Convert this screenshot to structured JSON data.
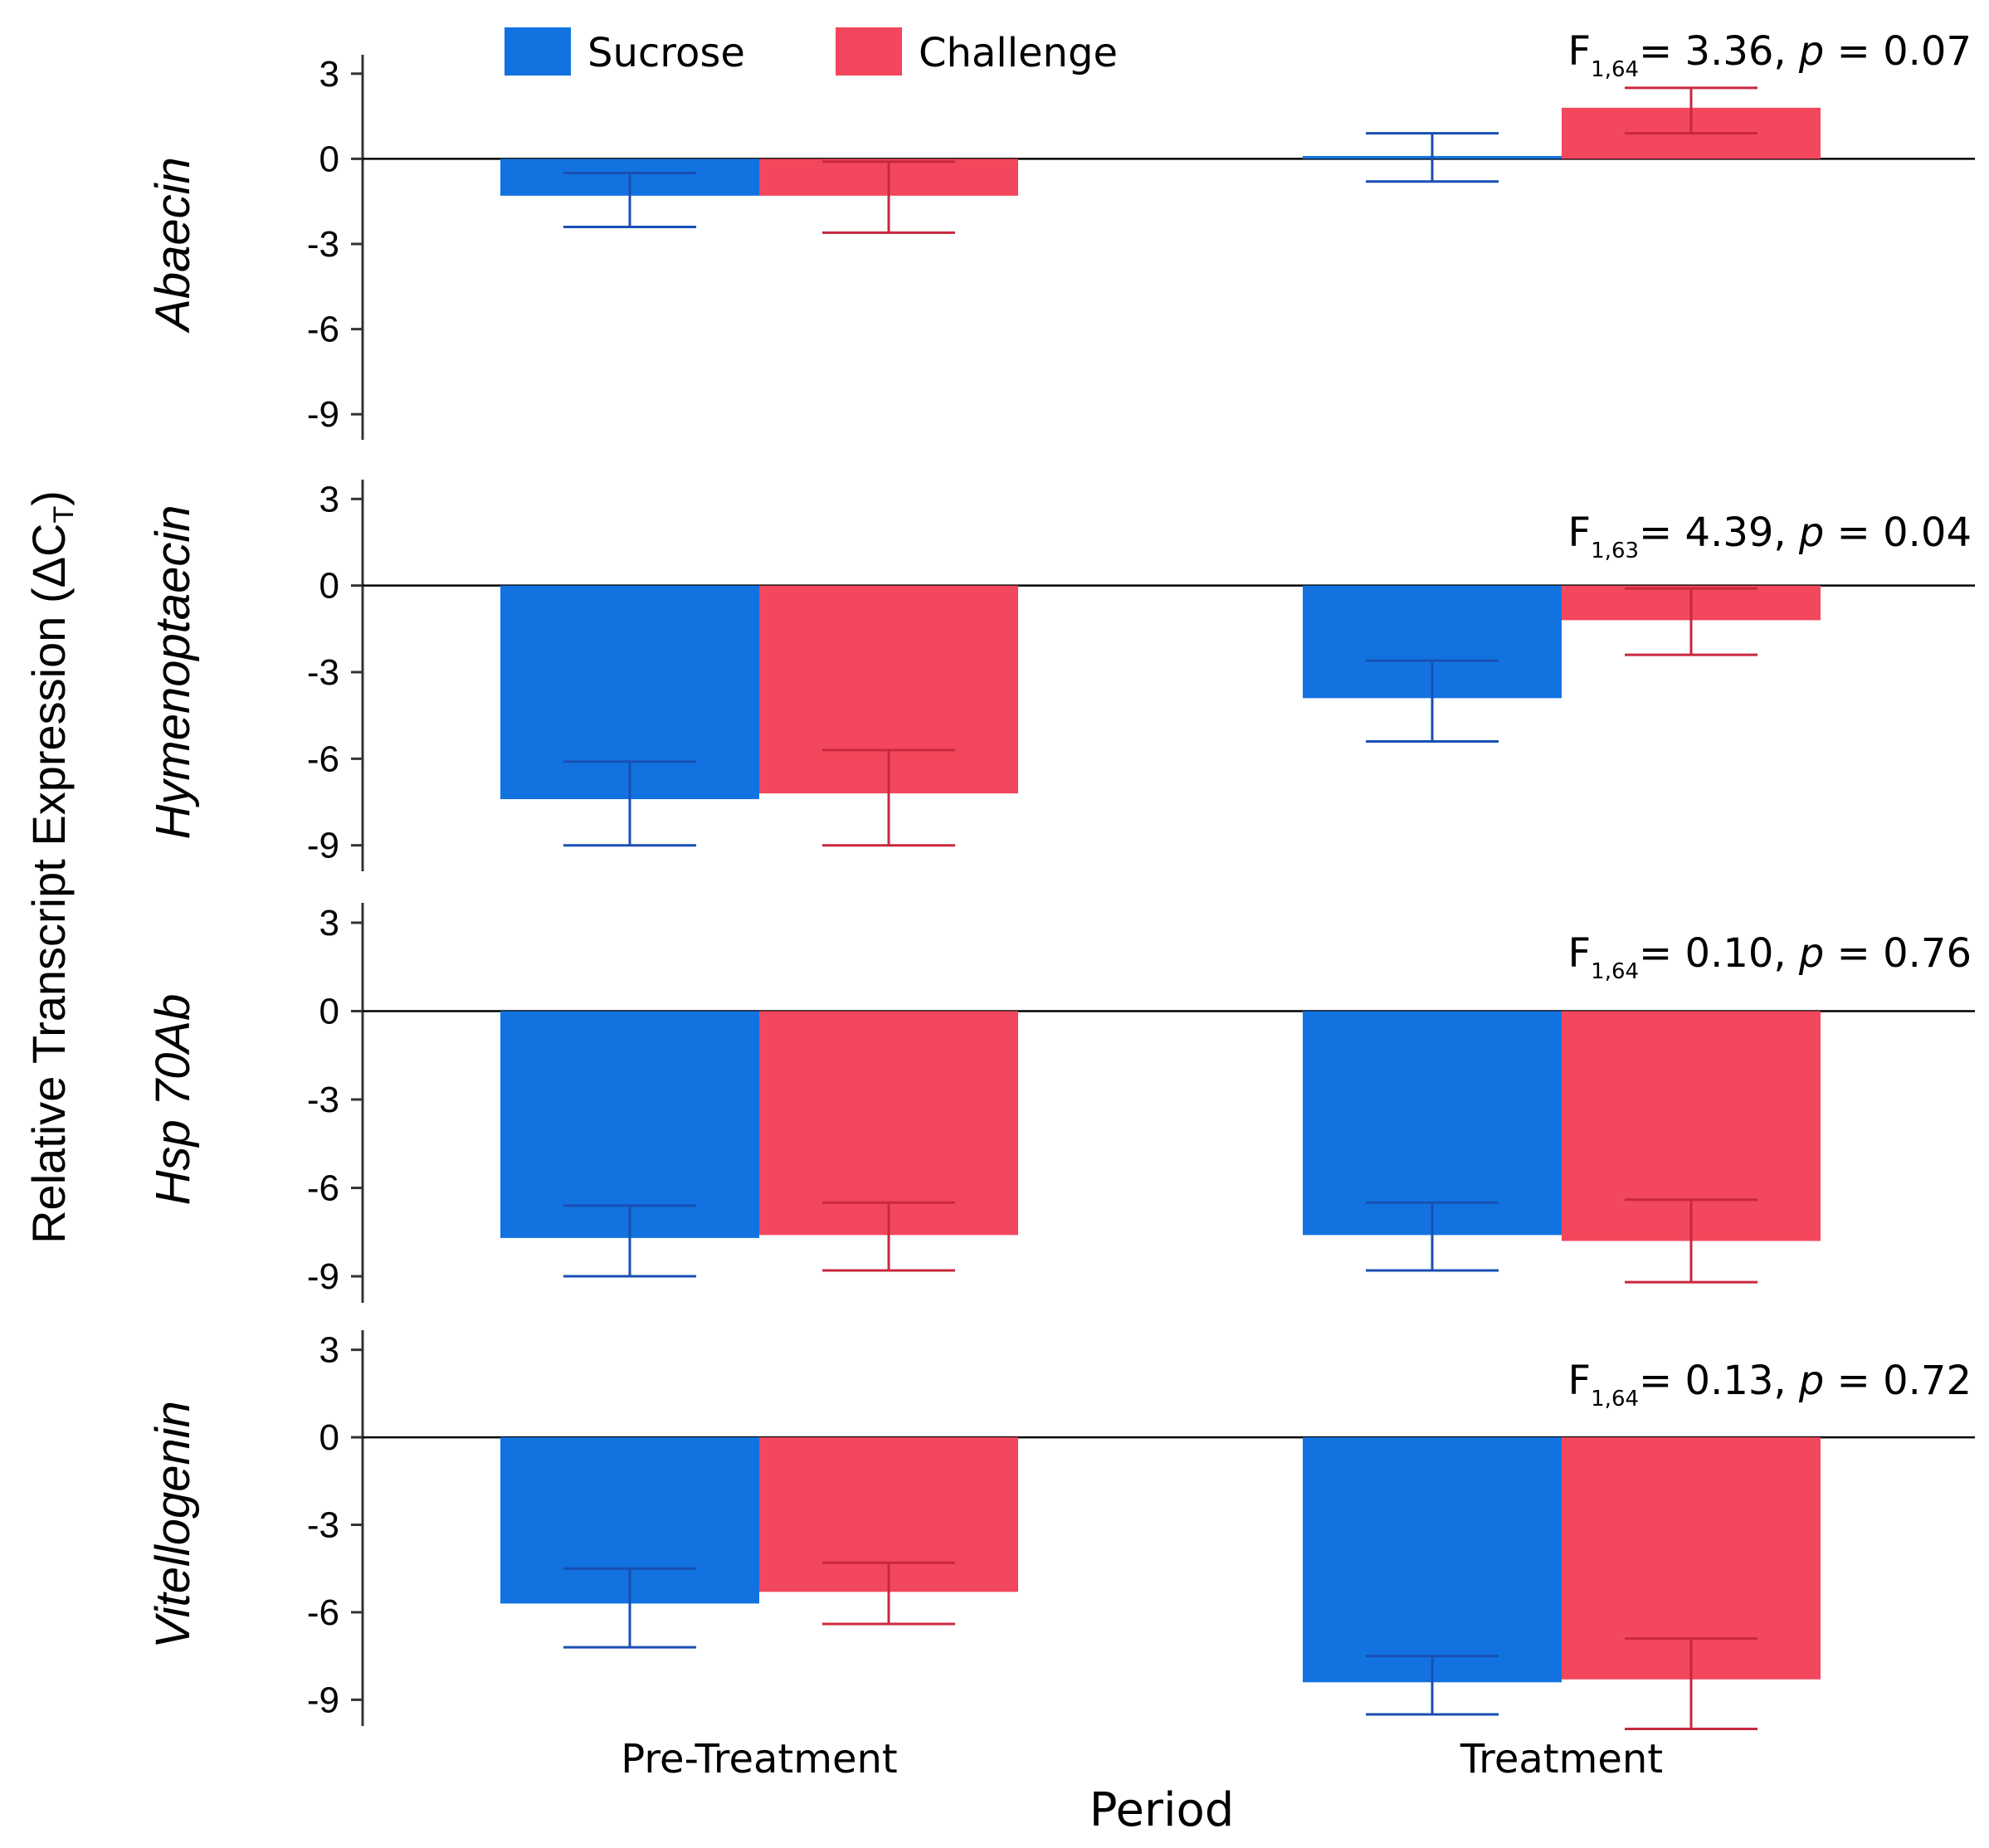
{
  "chart_data": {
    "type": "bar",
    "ylabel": "Relative Transcript Expression (ΔC",
    "ylabel_subscript": "T",
    "ylabel_close": ")",
    "xlabel": "Period",
    "categories": [
      "Pre-Treatment",
      "Treatment"
    ],
    "legend": [
      {
        "name": "Sucrose",
        "color": "#1273e0"
      },
      {
        "name": "Challenge",
        "color": "#f2475c"
      }
    ],
    "ylim": [
      -10,
      4
    ],
    "yticks": [
      "3",
      "0",
      "-3",
      "-6",
      "-9"
    ],
    "yticks_values": [
      3,
      0,
      -3,
      -6,
      -9
    ],
    "panels": [
      {
        "gene": "Abaecin",
        "stat": {
          "prefix": "F",
          "sub": "1,64",
          "rest": "= 3.36, ",
          "p": "p",
          "tail": " = 0.07"
        },
        "series": [
          {
            "name": "Sucrose",
            "values": [
              -1.3,
              0.1
            ],
            "err_low": [
              -2.4,
              -0.8
            ],
            "err_high": [
              -0.5,
              0.9
            ]
          },
          {
            "name": "Challenge",
            "values": [
              -1.3,
              1.8
            ],
            "err_low": [
              -2.6,
              0.9
            ],
            "err_high": [
              -0.1,
              2.5
            ]
          }
        ]
      },
      {
        "gene": "Hymenoptaecin",
        "stat": {
          "prefix": "F",
          "sub": "1,63",
          "rest": "= 4.39, ",
          "p": "p",
          "tail": " = 0.04"
        },
        "series": [
          {
            "name": "Sucrose",
            "values": [
              -7.4,
              -3.9
            ],
            "err_low": [
              -9.0,
              -5.4
            ],
            "err_high": [
              -6.1,
              -2.6
            ]
          },
          {
            "name": "Challenge",
            "values": [
              -7.2,
              -1.2
            ],
            "err_low": [
              -9.0,
              -2.4
            ],
            "err_high": [
              -5.7,
              -0.1
            ]
          }
        ]
      },
      {
        "gene": "Hsp 70Ab",
        "stat": {
          "prefix": "F",
          "sub": "1,64",
          "rest": "= 0.10, ",
          "p": "p",
          "tail": " = 0.76"
        },
        "series": [
          {
            "name": "Sucrose",
            "values": [
              -7.7,
              -7.6
            ],
            "err_low": [
              -9.0,
              -8.8
            ],
            "err_high": [
              -6.6,
              -6.5
            ]
          },
          {
            "name": "Challenge",
            "values": [
              -7.6,
              -7.8
            ],
            "err_low": [
              -8.8,
              -9.2
            ],
            "err_high": [
              -6.5,
              -6.4
            ]
          }
        ]
      },
      {
        "gene": "Vitellogenin",
        "stat": {
          "prefix": "F",
          "sub": "1,64",
          "rest": "= 0.13, ",
          "p": "p",
          "tail": " = 0.72"
        },
        "series": [
          {
            "name": "Sucrose",
            "values": [
              -5.7,
              -8.4
            ],
            "err_low": [
              -7.2,
              -9.5
            ],
            "err_high": [
              -4.5,
              -7.5
            ]
          },
          {
            "name": "Challenge",
            "values": [
              -5.3,
              -8.3
            ],
            "err_low": [
              -6.4,
              -10.0
            ],
            "err_high": [
              -4.3,
              -6.9
            ]
          }
        ]
      }
    ]
  }
}
